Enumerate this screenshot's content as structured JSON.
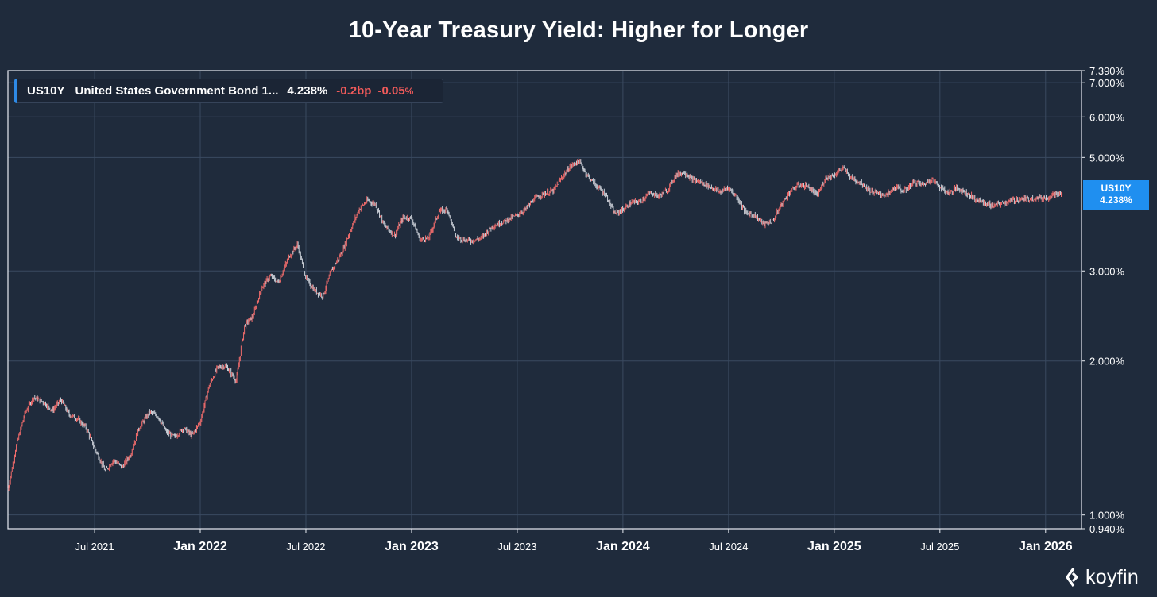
{
  "chart_data": {
    "type": "candlestick",
    "title": "10-Year Treasury Yield: Higher for Longer",
    "scale": "log",
    "y_range": [
      0.94,
      7.39
    ],
    "y_ticks": [
      "7.390%",
      "7.000%",
      "6.000%",
      "5.000%",
      "3.000%",
      "2.000%",
      "1.000%",
      "0.940%"
    ],
    "y_tick_values": [
      7.39,
      7.0,
      6.0,
      5.0,
      3.0,
      2.0,
      1.0,
      0.94
    ],
    "x_ticks": [
      {
        "label": "Jul 2021",
        "t": 2021.5,
        "bold": false
      },
      {
        "label": "Jan 2022",
        "t": 2022.0,
        "bold": true
      },
      {
        "label": "Jul 2022",
        "t": 2022.5,
        "bold": false
      },
      {
        "label": "Jan 2023",
        "t": 2023.0,
        "bold": true
      },
      {
        "label": "Jul 2023",
        "t": 2023.5,
        "bold": false
      },
      {
        "label": "Jan 2024",
        "t": 2024.0,
        "bold": true
      },
      {
        "label": "Jul 2024",
        "t": 2024.5,
        "bold": false
      },
      {
        "label": "Jan 2025",
        "t": 2025.0,
        "bold": true
      },
      {
        "label": "Jul 2025",
        "t": 2025.5,
        "bold": false
      },
      {
        "label": "Jan 2026",
        "t": 2026.0,
        "bold": true
      }
    ],
    "x_range": [
      2021.09,
      2026.17
    ],
    "series": [
      {
        "name": "US10Y",
        "points": [
          [
            2021.09,
            1.12
          ],
          [
            2021.13,
            1.37
          ],
          [
            2021.17,
            1.58
          ],
          [
            2021.21,
            1.7
          ],
          [
            2021.26,
            1.66
          ],
          [
            2021.3,
            1.6
          ],
          [
            2021.34,
            1.68
          ],
          [
            2021.38,
            1.57
          ],
          [
            2021.42,
            1.54
          ],
          [
            2021.46,
            1.48
          ],
          [
            2021.5,
            1.35
          ],
          [
            2021.55,
            1.22
          ],
          [
            2021.59,
            1.28
          ],
          [
            2021.63,
            1.24
          ],
          [
            2021.67,
            1.31
          ],
          [
            2021.71,
            1.48
          ],
          [
            2021.76,
            1.59
          ],
          [
            2021.8,
            1.56
          ],
          [
            2021.84,
            1.45
          ],
          [
            2021.88,
            1.42
          ],
          [
            2021.92,
            1.48
          ],
          [
            2021.96,
            1.43
          ],
          [
            2022.0,
            1.52
          ],
          [
            2022.04,
            1.78
          ],
          [
            2022.08,
            1.94
          ],
          [
            2022.12,
            1.96
          ],
          [
            2022.17,
            1.83
          ],
          [
            2022.21,
            2.35
          ],
          [
            2022.25,
            2.45
          ],
          [
            2022.29,
            2.78
          ],
          [
            2022.33,
            2.93
          ],
          [
            2022.37,
            2.85
          ],
          [
            2022.42,
            3.2
          ],
          [
            2022.46,
            3.38
          ],
          [
            2022.5,
            2.9
          ],
          [
            2022.54,
            2.75
          ],
          [
            2022.58,
            2.68
          ],
          [
            2022.62,
            3.0
          ],
          [
            2022.67,
            3.26
          ],
          [
            2022.71,
            3.6
          ],
          [
            2022.75,
            3.95
          ],
          [
            2022.79,
            4.12
          ],
          [
            2022.83,
            4.05
          ],
          [
            2022.87,
            3.68
          ],
          [
            2022.92,
            3.52
          ],
          [
            2022.96,
            3.82
          ],
          [
            2023.0,
            3.8
          ],
          [
            2023.04,
            3.45
          ],
          [
            2023.08,
            3.48
          ],
          [
            2023.13,
            3.92
          ],
          [
            2023.17,
            3.96
          ],
          [
            2023.21,
            3.49
          ],
          [
            2023.25,
            3.45
          ],
          [
            2023.29,
            3.44
          ],
          [
            2023.33,
            3.48
          ],
          [
            2023.38,
            3.66
          ],
          [
            2023.42,
            3.72
          ],
          [
            2023.46,
            3.79
          ],
          [
            2023.5,
            3.86
          ],
          [
            2023.54,
            3.96
          ],
          [
            2023.58,
            4.15
          ],
          [
            2023.62,
            4.24
          ],
          [
            2023.67,
            4.3
          ],
          [
            2023.71,
            4.56
          ],
          [
            2023.75,
            4.8
          ],
          [
            2023.79,
            4.93
          ],
          [
            2023.83,
            4.62
          ],
          [
            2023.87,
            4.42
          ],
          [
            2023.92,
            4.22
          ],
          [
            2023.96,
            3.88
          ],
          [
            2024.0,
            3.95
          ],
          [
            2024.04,
            4.08
          ],
          [
            2024.08,
            4.1
          ],
          [
            2024.13,
            4.27
          ],
          [
            2024.17,
            4.2
          ],
          [
            2024.21,
            4.32
          ],
          [
            2024.25,
            4.62
          ],
          [
            2024.29,
            4.68
          ],
          [
            2024.33,
            4.52
          ],
          [
            2024.38,
            4.45
          ],
          [
            2024.42,
            4.37
          ],
          [
            2024.46,
            4.28
          ],
          [
            2024.5,
            4.37
          ],
          [
            2024.54,
            4.18
          ],
          [
            2024.58,
            3.9
          ],
          [
            2024.62,
            3.86
          ],
          [
            2024.67,
            3.7
          ],
          [
            2024.71,
            3.76
          ],
          [
            2024.75,
            4.05
          ],
          [
            2024.79,
            4.28
          ],
          [
            2024.83,
            4.42
          ],
          [
            2024.87,
            4.4
          ],
          [
            2024.92,
            4.21
          ],
          [
            2024.96,
            4.57
          ],
          [
            2025.0,
            4.62
          ],
          [
            2025.04,
            4.78
          ],
          [
            2025.08,
            4.56
          ],
          [
            2025.13,
            4.45
          ],
          [
            2025.17,
            4.3
          ],
          [
            2025.21,
            4.25
          ],
          [
            2025.25,
            4.22
          ],
          [
            2025.29,
            4.38
          ],
          [
            2025.33,
            4.3
          ],
          [
            2025.38,
            4.48
          ],
          [
            2025.42,
            4.42
          ],
          [
            2025.46,
            4.54
          ],
          [
            2025.5,
            4.38
          ],
          [
            2025.54,
            4.26
          ],
          [
            2025.58,
            4.36
          ],
          [
            2025.62,
            4.28
          ],
          [
            2025.67,
            4.14
          ],
          [
            2025.71,
            4.08
          ],
          [
            2025.75,
            4.02
          ],
          [
            2025.79,
            4.06
          ],
          [
            2025.83,
            4.11
          ],
          [
            2025.87,
            4.14
          ],
          [
            2025.92,
            4.15
          ],
          [
            2025.96,
            4.17
          ],
          [
            2026.0,
            4.16
          ],
          [
            2026.04,
            4.24
          ],
          [
            2026.08,
            4.238
          ]
        ]
      }
    ]
  },
  "legend": {
    "symbol": "US10Y",
    "name": "United States Government Bond 1...",
    "value": "4.238%",
    "change_bp": "-0.2bp",
    "change_pct_num": "-0.05",
    "change_pct_unit": "%"
  },
  "price_tag": {
    "symbol": "US10Y",
    "value": "4.238%"
  },
  "logo": {
    "text": "koyfin"
  },
  "colors": {
    "background": "#1f2b3c",
    "grid": "#3a4a60",
    "up": "#c9ced6",
    "down": "#ef6b6b",
    "accent": "#1f8ff0"
  }
}
